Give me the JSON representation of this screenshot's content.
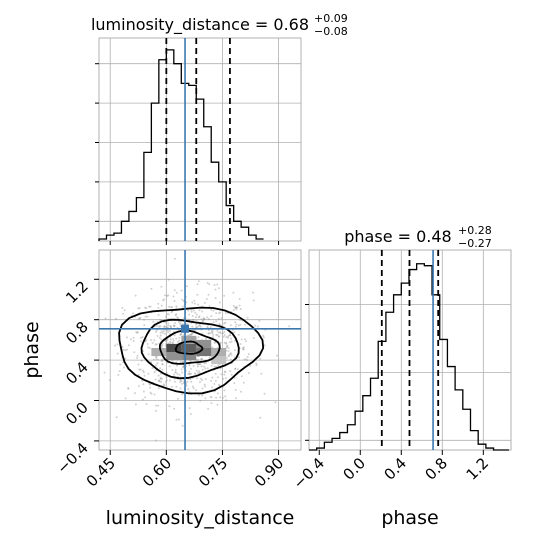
{
  "chart_data": {
    "type": "corner",
    "colors": {
      "truth": "#3c78b0",
      "hist": "#000000",
      "scatter": "#9a9a9a"
    },
    "grid": true,
    "parameters": [
      "luminosity_distance",
      "phase"
    ],
    "truths": {
      "luminosity_distance": 0.65,
      "phase": 0.71
    },
    "panels": [
      {
        "id": "luminosity_distance_hist",
        "type": "histogram",
        "parameter": "luminosity_distance",
        "title": {
          "prefix": "luminosity_distance = 0.68",
          "plus": "+0.09",
          "minus": "−0.08"
        },
        "quantiles": [
          0.6,
          0.68,
          0.77
        ],
        "bin_edges_start": 0.42,
        "bin_width": 0.02,
        "counts": [
          1,
          3,
          4,
          10,
          15,
          22,
          45,
          70,
          92,
          97,
          90,
          80,
          79,
          72,
          58,
          40,
          30,
          18,
          10,
          7,
          3,
          1
        ],
        "xlim": [
          0.42,
          0.96
        ],
        "ymax": 100,
        "x_ticks": [
          "0.45",
          "0.60",
          "0.75",
          "0.90"
        ],
        "x_tick_values": [
          0.45,
          0.6,
          0.75,
          0.9
        ]
      },
      {
        "id": "joint_density",
        "type": "2d_density",
        "x_parameter": "luminosity_distance",
        "y_parameter": "phase",
        "xlim": [
          0.42,
          0.96
        ],
        "ylim": [
          -0.49,
          1.49
        ],
        "x_ticks": [
          "0.45",
          "0.60",
          "0.75",
          "0.90"
        ],
        "x_tick_values": [
          0.45,
          0.6,
          0.75,
          0.9
        ],
        "y_ticks": [
          "−0.4",
          "0.0",
          "0.4",
          "0.8",
          "1.2"
        ],
        "y_tick_values": [
          -0.4,
          0.0,
          0.4,
          0.8,
          1.2
        ],
        "xlabel": "luminosity_distance",
        "ylabel": "phase",
        "center": [
          0.66,
          0.52
        ],
        "density_cells": [
          {
            "x": 0.62,
            "y": 0.52,
            "level": 0.9
          },
          {
            "x": 0.66,
            "y": 0.52,
            "level": 0.8
          },
          {
            "x": 0.7,
            "y": 0.48,
            "level": 0.7
          },
          {
            "x": 0.66,
            "y": 0.44,
            "level": 0.6
          },
          {
            "x": 0.62,
            "y": 0.44,
            "level": 0.55
          },
          {
            "x": 0.7,
            "y": 0.56,
            "level": 0.55
          },
          {
            "x": 0.74,
            "y": 0.48,
            "level": 0.4
          },
          {
            "x": 0.58,
            "y": 0.48,
            "level": 0.4
          },
          {
            "x": 0.66,
            "y": 0.6,
            "level": 0.45
          },
          {
            "x": 0.74,
            "y": 0.4,
            "level": 0.3
          }
        ],
        "contour_levels": [
          {
            "rx": 0.035,
            "ry": 0.06
          },
          {
            "rx": 0.08,
            "ry": 0.16
          },
          {
            "rx": 0.13,
            "ry": 0.28
          },
          {
            "rx": 0.19,
            "ry": 0.42
          }
        ]
      },
      {
        "id": "phase_hist",
        "type": "histogram",
        "parameter": "phase",
        "title": {
          "prefix": "phase = 0.48",
          "plus": "+0.28",
          "minus": "−0.27"
        },
        "quantiles": [
          0.21,
          0.48,
          0.76
        ],
        "bin_edges_start": -0.5,
        "bin_width": 0.075,
        "counts": [
          0,
          1,
          4,
          6,
          9,
          13,
          20,
          28,
          37,
          56,
          71,
          80,
          86,
          93,
          96,
          95,
          80,
          57,
          43,
          31,
          21,
          10,
          3,
          1,
          0,
          0
        ],
        "xlim": [
          -0.5,
          1.47
        ],
        "ymax": 100,
        "x_ticks": [
          "−0.4",
          "0.0",
          "0.4",
          "0.8",
          "1.2"
        ],
        "x_tick_values": [
          -0.4,
          0.0,
          0.4,
          0.8,
          1.2
        ],
        "xlabel": "phase"
      }
    ]
  }
}
